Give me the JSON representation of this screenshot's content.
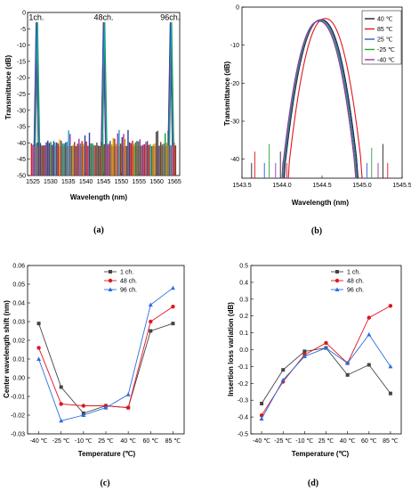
{
  "chart_data": [
    {
      "id": "a",
      "type": "line",
      "panel_label": "(a)",
      "xlabel": "Wavelength (nm)",
      "ylabel": "Transmittance (dB)",
      "xlim": [
        1523.5,
        1566.5
      ],
      "ylim": [
        -50,
        0
      ],
      "xticks": [
        "1525",
        "1530",
        "1535",
        "1540",
        "1545",
        "1550",
        "1555",
        "1560",
        "1565"
      ],
      "yticks": [
        "0",
        "-5",
        "-10",
        "-15",
        "-20",
        "-25",
        "-30",
        "-35",
        "-40",
        "-45",
        "-50"
      ],
      "annotations": [
        {
          "text": "1ch.",
          "x": 1526.0,
          "y": -1.5
        },
        {
          "text": "48ch.",
          "x": 1545.0,
          "y": -1.5
        },
        {
          "text": "96ch.",
          "x": 1563.8,
          "y": -1.5
        }
      ],
      "peaks": [
        {
          "x": 1526.1,
          "y": -3
        },
        {
          "x": 1545.1,
          "y": -3
        },
        {
          "x": 1564.0,
          "y": -3
        }
      ],
      "noise_floor": [
        -41,
        -36
      ],
      "colors": [
        "#e0161e",
        "#2d3b9c",
        "#0a9c36",
        "#4c4c4c",
        "#a02fb0",
        "#e69a00",
        "#1aa3c4",
        "#7a3c12"
      ]
    },
    {
      "id": "b",
      "type": "line",
      "panel_label": "(b)",
      "xlabel": "Wavelength (nm)",
      "ylabel": "Transmittance (dB)",
      "xlim": [
        1543.5,
        1545.5
      ],
      "ylim": [
        -45,
        0
      ],
      "xticks": [
        "1543.5",
        "1544.0",
        "1544.5",
        "1545.0",
        "1545.5"
      ],
      "yticks": [
        "0",
        "-10",
        "-20",
        "-30",
        "-40"
      ],
      "legend_position": "top-right",
      "series": [
        {
          "name": "40 ℃",
          "color": "#222222",
          "center": 1544.49,
          "peak": -3.3
        },
        {
          "name": "85 ℃",
          "color": "#e0161e",
          "center": 1544.54,
          "peak": -3.0
        },
        {
          "name": "25 ℃",
          "color": "#2d5bd6",
          "center": 1544.48,
          "peak": -3.4
        },
        {
          "name": "-25 ℃",
          "color": "#2aa43a",
          "center": 1544.47,
          "peak": -3.6
        },
        {
          "name": "-40 ℃",
          "color": "#a02fb0",
          "center": 1544.46,
          "peak": -3.7
        }
      ]
    },
    {
      "id": "c",
      "type": "line",
      "panel_label": "(c)",
      "xlabel": "Temperature (℃)",
      "ylabel": "Center wavelength shift (nm)",
      "categories": [
        "-40 ℃",
        "-25 ℃",
        "-10 ℃",
        "25 ℃",
        "40 ℃",
        "60 ℃",
        "85 ℃"
      ],
      "ylim": [
        -0.03,
        0.06
      ],
      "yticks": [
        "0.06",
        "0.05",
        "0.04",
        "0.03",
        "0.02",
        "0.01",
        "0.00",
        "-0.01",
        "-0.02",
        "-0.03"
      ],
      "legend_position": "top-center",
      "series": [
        {
          "name": "1 ch.",
          "color": "#444444",
          "marker": "square",
          "values": [
            0.029,
            -0.005,
            -0.019,
            -0.015,
            -0.016,
            0.025,
            0.029
          ]
        },
        {
          "name": "48 ch.",
          "color": "#e0161e",
          "marker": "circle",
          "values": [
            0.016,
            -0.014,
            -0.015,
            -0.015,
            -0.016,
            0.03,
            0.038
          ]
        },
        {
          "name": "96 ch.",
          "color": "#2d6fe0",
          "marker": "triangle",
          "values": [
            0.01,
            -0.023,
            -0.02,
            -0.016,
            -0.009,
            0.039,
            0.048
          ]
        }
      ]
    },
    {
      "id": "d",
      "type": "line",
      "panel_label": "(d)",
      "xlabel": "Temperature (℃)",
      "ylabel": "Insertion loss variation (dB)",
      "categories": [
        "-40 ℃",
        "-25 ℃",
        "-10 ℃",
        "25 ℃",
        "40 ℃",
        "60 ℃",
        "85 ℃"
      ],
      "ylim": [
        -0.5,
        0.5
      ],
      "yticks": [
        "0.5",
        "0.4",
        "0.3",
        "0.2",
        "0.1",
        "0.0",
        "-0.1",
        "-0.2",
        "-0.3",
        "-0.4",
        "-0.5"
      ],
      "legend_position": "top-center",
      "series": [
        {
          "name": "1 ch.",
          "color": "#444444",
          "marker": "square",
          "values": [
            -0.32,
            -0.12,
            -0.01,
            0.01,
            -0.15,
            -0.09,
            -0.26
          ]
        },
        {
          "name": "48 ch.",
          "color": "#e0161e",
          "marker": "circle",
          "values": [
            -0.39,
            -0.19,
            -0.03,
            0.04,
            -0.08,
            0.19,
            0.26
          ]
        },
        {
          "name": "96 ch.",
          "color": "#2d6fe0",
          "marker": "triangle",
          "values": [
            -0.41,
            -0.18,
            -0.04,
            0.01,
            -0.08,
            0.09,
            -0.1
          ]
        }
      ]
    }
  ]
}
